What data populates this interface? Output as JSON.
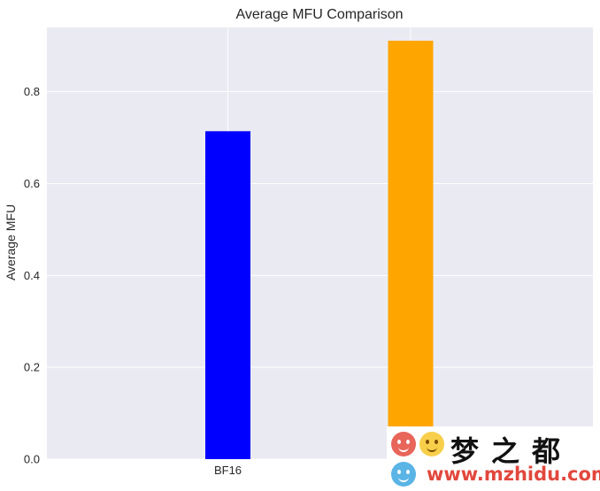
{
  "chart_data": {
    "type": "bar",
    "title": "Average MFU Comparison",
    "xlabel": "",
    "ylabel": "Average MFU",
    "categories": [
      "BF16",
      ""
    ],
    "values": [
      0.714,
      0.911
    ],
    "bar_colors": [
      "#0000ff",
      "#ffa500"
    ],
    "ylim": [
      0,
      0.94
    ],
    "yticks": [
      0.0,
      0.2,
      0.4,
      0.6,
      0.8
    ],
    "ytick_labels": [
      "0.0",
      "0.2",
      "0.4",
      "0.6",
      "0.8"
    ],
    "grid": true,
    "background_color": "#eaeaf2",
    "grid_color": "#ffffff"
  },
  "watermark": {
    "chinese": "梦之都",
    "url": "www.mzhidu.com"
  }
}
